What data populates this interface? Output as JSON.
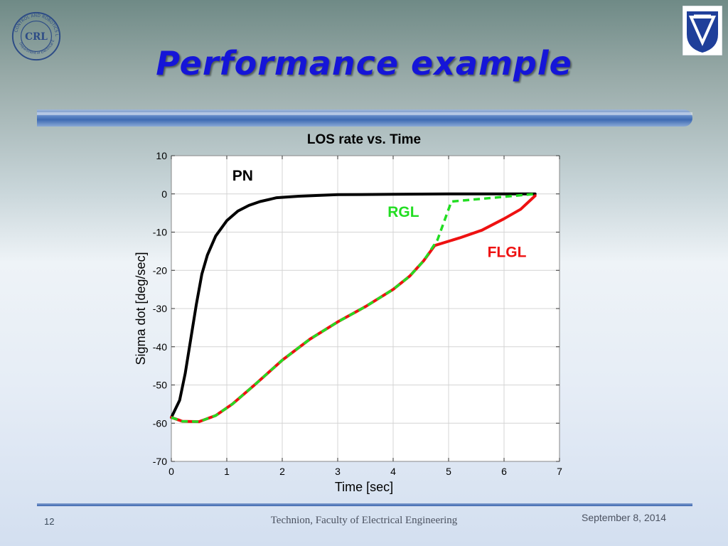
{
  "slide": {
    "title": "Performance example",
    "number": "12",
    "footer": "Technion, Faculty of Electrical Engineering",
    "date": "September 8, 2014"
  },
  "logos": {
    "left_text": "CRL",
    "left_ring_top": "CONTROL AND ROBOTICS LAB",
    "left_ring_bottom": "Department of Electrical Engineering"
  },
  "colors": {
    "title": "#1515d8",
    "pn": "#000000",
    "rgl": "#22dd22",
    "flgl": "#ee1111",
    "rule": "#3e6ab2"
  },
  "chart_data": {
    "type": "line",
    "title": "LOS rate vs. Time",
    "xlabel": "Time [sec]",
    "ylabel": "Sigma dot [deg/sec]",
    "xlim": [
      0,
      7
    ],
    "ylim": [
      -70,
      10
    ],
    "xticks": [
      0,
      1,
      2,
      3,
      4,
      5,
      6,
      7
    ],
    "yticks": [
      10,
      0,
      -10,
      -20,
      -30,
      -40,
      -50,
      -60,
      -70
    ],
    "grid": true,
    "series": [
      {
        "name": "PN",
        "color": "#000000",
        "style": "solid",
        "label_pos": [
          1.1,
          3.5
        ],
        "points": [
          [
            0,
            -58.5
          ],
          [
            0.15,
            -54
          ],
          [
            0.25,
            -47
          ],
          [
            0.35,
            -38
          ],
          [
            0.45,
            -29
          ],
          [
            0.55,
            -21
          ],
          [
            0.65,
            -16
          ],
          [
            0.8,
            -11
          ],
          [
            1.0,
            -7
          ],
          [
            1.2,
            -4.5
          ],
          [
            1.4,
            -3
          ],
          [
            1.6,
            -2
          ],
          [
            1.9,
            -1
          ],
          [
            2.3,
            -0.6
          ],
          [
            3.0,
            -0.2
          ],
          [
            4.0,
            -0.1
          ],
          [
            5.0,
            0
          ],
          [
            6.56,
            0
          ]
        ]
      },
      {
        "name": "RGL",
        "color": "#22dd22",
        "style": "dashed",
        "label_pos": [
          3.9,
          -6
        ],
        "points": [
          [
            0,
            -58.5
          ],
          [
            0.2,
            -59.5
          ],
          [
            0.5,
            -59.6
          ],
          [
            0.8,
            -58
          ],
          [
            1.1,
            -55
          ],
          [
            1.5,
            -50
          ],
          [
            2.0,
            -43.5
          ],
          [
            2.5,
            -38
          ],
          [
            3.0,
            -33.5
          ],
          [
            3.5,
            -29.5
          ],
          [
            4.0,
            -25
          ],
          [
            4.3,
            -21.5
          ],
          [
            4.55,
            -17.5
          ],
          [
            4.8,
            -12
          ],
          [
            5.05,
            -2
          ],
          [
            6.56,
            0
          ]
        ]
      },
      {
        "name": "FLGL",
        "color": "#ee1111",
        "style": "solid",
        "label_pos": [
          5.7,
          -16.5
        ],
        "points": [
          [
            0,
            -58.5
          ],
          [
            0.2,
            -59.5
          ],
          [
            0.5,
            -59.6
          ],
          [
            0.8,
            -58
          ],
          [
            1.1,
            -55
          ],
          [
            1.5,
            -50
          ],
          [
            2.0,
            -43.5
          ],
          [
            2.5,
            -38
          ],
          [
            3.0,
            -33.5
          ],
          [
            3.5,
            -29.5
          ],
          [
            4.0,
            -25
          ],
          [
            4.3,
            -21.5
          ],
          [
            4.55,
            -17.5
          ],
          [
            4.75,
            -13.5
          ],
          [
            5.2,
            -11.5
          ],
          [
            5.6,
            -9.5
          ],
          [
            6.0,
            -6.5
          ],
          [
            6.3,
            -4
          ],
          [
            6.56,
            -0.5
          ]
        ]
      }
    ]
  }
}
